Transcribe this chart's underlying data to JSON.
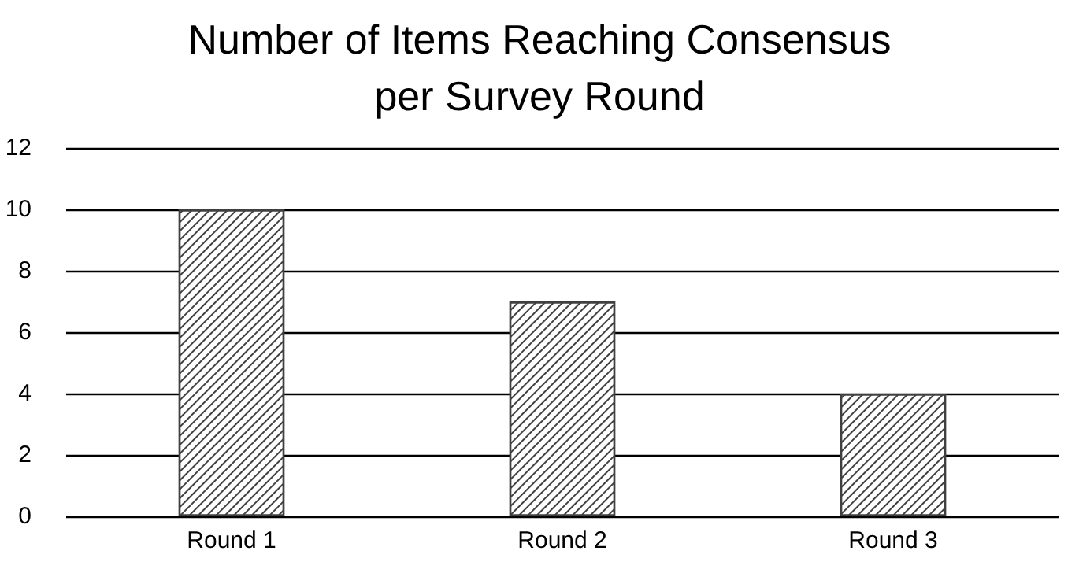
{
  "chart_data": {
    "type": "bar",
    "title": "Number of Items Reaching Consensus\nper Survey Round",
    "categories": [
      "Round 1",
      "Round 2",
      "Round 3"
    ],
    "values": [
      10,
      7,
      4
    ],
    "color": "#404040",
    "ylim": [
      0,
      12
    ],
    "yticks": [
      0,
      2,
      4,
      6,
      8,
      10,
      12
    ],
    "grid": "y"
  }
}
